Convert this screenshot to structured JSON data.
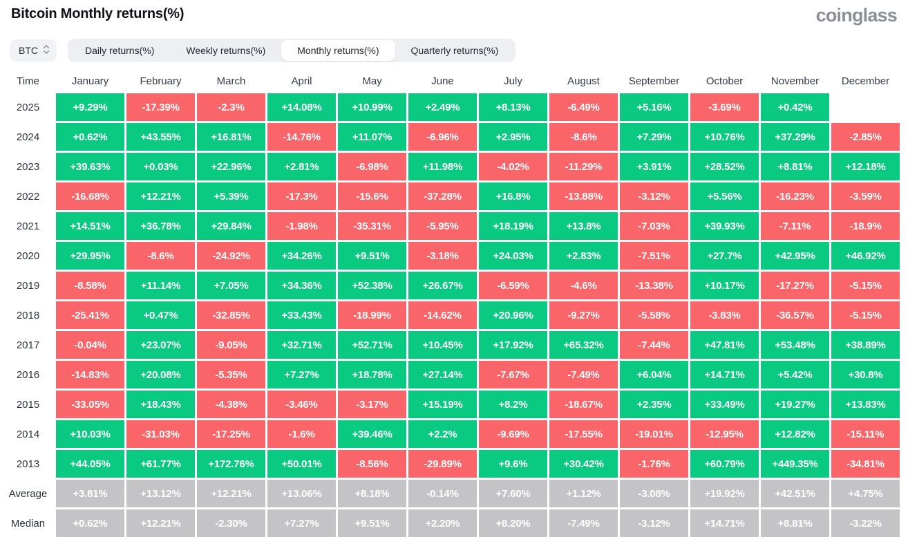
{
  "page": {
    "title": "Bitcoin Monthly returns(%)",
    "logo": "coinglass",
    "symbol": "BTC",
    "tabs": [
      {
        "label": "Daily returns(%)",
        "active": false
      },
      {
        "label": "Weekly returns(%)",
        "active": false
      },
      {
        "label": "Monthly returns(%)",
        "active": true
      },
      {
        "label": "Quarterly returns(%)",
        "active": false
      }
    ]
  },
  "colors": {
    "positive": "#0aca82",
    "negative": "#fa656a",
    "neutral": "#c4c4c7"
  },
  "chart_data": {
    "type": "heatmap",
    "title": "Bitcoin Monthly returns(%)",
    "time_header": "Time",
    "columns": [
      "January",
      "February",
      "March",
      "April",
      "May",
      "June",
      "July",
      "August",
      "September",
      "October",
      "November",
      "December"
    ],
    "rows": [
      {
        "label": "2025",
        "kind": "year",
        "cells": [
          "+9.29%",
          "-17.39%",
          "-2.3%",
          "+14.08%",
          "+10.99%",
          "+2.49%",
          "+8.13%",
          "-6.49%",
          "+5.16%",
          "-3.69%",
          "+0.42%",
          ""
        ]
      },
      {
        "label": "2024",
        "kind": "year",
        "cells": [
          "+0.62%",
          "+43.55%",
          "+16.81%",
          "-14.76%",
          "+11.07%",
          "-6.96%",
          "+2.95%",
          "-8.6%",
          "+7.29%",
          "+10.76%",
          "+37.29%",
          "-2.85%"
        ]
      },
      {
        "label": "2023",
        "kind": "year",
        "cells": [
          "+39.63%",
          "+0.03%",
          "+22.96%",
          "+2.81%",
          "-6.98%",
          "+11.98%",
          "-4.02%",
          "-11.29%",
          "+3.91%",
          "+28.52%",
          "+8.81%",
          "+12.18%"
        ]
      },
      {
        "label": "2022",
        "kind": "year",
        "cells": [
          "-16.68%",
          "+12.21%",
          "+5.39%",
          "-17.3%",
          "-15.6%",
          "-37.28%",
          "+16.8%",
          "-13.88%",
          "-3.12%",
          "+5.56%",
          "-16.23%",
          "-3.59%"
        ]
      },
      {
        "label": "2021",
        "kind": "year",
        "cells": [
          "+14.51%",
          "+36.78%",
          "+29.84%",
          "-1.98%",
          "-35.31%",
          "-5.95%",
          "+18.19%",
          "+13.8%",
          "-7.03%",
          "+39.93%",
          "-7.11%",
          "-18.9%"
        ]
      },
      {
        "label": "2020",
        "kind": "year",
        "cells": [
          "+29.95%",
          "-8.6%",
          "-24.92%",
          "+34.26%",
          "+9.51%",
          "-3.18%",
          "+24.03%",
          "+2.83%",
          "-7.51%",
          "+27.7%",
          "+42.95%",
          "+46.92%"
        ]
      },
      {
        "label": "2019",
        "kind": "year",
        "cells": [
          "-8.58%",
          "+11.14%",
          "+7.05%",
          "+34.36%",
          "+52.38%",
          "+26.67%",
          "-6.59%",
          "-4.6%",
          "-13.38%",
          "+10.17%",
          "-17.27%",
          "-5.15%"
        ]
      },
      {
        "label": "2018",
        "kind": "year",
        "cells": [
          "-25.41%",
          "+0.47%",
          "-32.85%",
          "+33.43%",
          "-18.99%",
          "-14.62%",
          "+20.96%",
          "-9.27%",
          "-5.58%",
          "-3.83%",
          "-36.57%",
          "-5.15%"
        ]
      },
      {
        "label": "2017",
        "kind": "year",
        "cells": [
          "-0.04%",
          "+23.07%",
          "-9.05%",
          "+32.71%",
          "+52.71%",
          "+10.45%",
          "+17.92%",
          "+65.32%",
          "-7.44%",
          "+47.81%",
          "+53.48%",
          "+38.89%"
        ]
      },
      {
        "label": "2016",
        "kind": "year",
        "cells": [
          "-14.83%",
          "+20.08%",
          "-5.35%",
          "+7.27%",
          "+18.78%",
          "+27.14%",
          "-7.67%",
          "-7.49%",
          "+6.04%",
          "+14.71%",
          "+5.42%",
          "+30.8%"
        ]
      },
      {
        "label": "2015",
        "kind": "year",
        "cells": [
          "-33.05%",
          "+18.43%",
          "-4.38%",
          "-3.46%",
          "-3.17%",
          "+15.19%",
          "+8.2%",
          "-18.67%",
          "+2.35%",
          "+33.49%",
          "+19.27%",
          "+13.83%"
        ]
      },
      {
        "label": "2014",
        "kind": "year",
        "cells": [
          "+10.03%",
          "-31.03%",
          "-17.25%",
          "-1.6%",
          "+39.46%",
          "+2.2%",
          "-9.69%",
          "-17.55%",
          "-19.01%",
          "-12.95%",
          "+12.82%",
          "-15.11%"
        ]
      },
      {
        "label": "2013",
        "kind": "year",
        "cells": [
          "+44.05%",
          "+61.77%",
          "+172.76%",
          "+50.01%",
          "-8.56%",
          "-29.89%",
          "+9.6%",
          "+30.42%",
          "-1.76%",
          "+60.79%",
          "+449.35%",
          "-34.81%"
        ]
      },
      {
        "label": "Average",
        "kind": "summary",
        "cells": [
          "+3.81%",
          "+13.12%",
          "+12.21%",
          "+13.06%",
          "+8.18%",
          "-0.14%",
          "+7.60%",
          "+1.12%",
          "-3.08%",
          "+19.92%",
          "+42.51%",
          "+4.75%"
        ]
      },
      {
        "label": "Median",
        "kind": "summary",
        "cells": [
          "+0.62%",
          "+12.21%",
          "-2.30%",
          "+7.27%",
          "+9.51%",
          "+2.20%",
          "+8.20%",
          "-7.49%",
          "-3.12%",
          "+14.71%",
          "+8.81%",
          "-3.22%"
        ]
      }
    ]
  }
}
